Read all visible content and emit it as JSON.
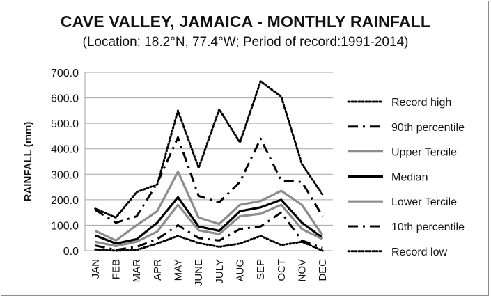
{
  "chart_data": {
    "type": "line",
    "title": "CAVE VALLEY, JAMAICA - MONTHLY RAINFALL",
    "subtitle": "(Location: 18.2°N, 77.4°W; Period of record:1991-2014)",
    "ylabel": "RAINFALL (mm)",
    "xlabel": "",
    "ylim": [
      0,
      700
    ],
    "yticks": [
      "0.0",
      "100.0",
      "200.0",
      "300.0",
      "400.0",
      "500.0",
      "600.0",
      "700.0"
    ],
    "categories": [
      "JAN",
      "FEB",
      "MAR",
      "APR",
      "MAY",
      "JUNE",
      "JULY",
      "AUG",
      "SEP",
      "OCT",
      "NOV",
      "DEC"
    ],
    "grid": true,
    "legend_position": "right",
    "series": [
      {
        "name": "Record high",
        "style": "dotted",
        "color": "#000000",
        "values": [
          165,
          130,
          230,
          260,
          550,
          325,
          555,
          425,
          665,
          605,
          340,
          220
        ]
      },
      {
        "name": "90th percentile",
        "style": "dashdot",
        "color": "#000000",
        "values": [
          160,
          110,
          135,
          265,
          445,
          215,
          190,
          270,
          440,
          275,
          270,
          135
        ]
      },
      {
        "name": "Upper Tercile",
        "style": "solid-gray",
        "color": "#8c8c8c",
        "values": [
          78,
          40,
          100,
          155,
          310,
          130,
          105,
          180,
          195,
          235,
          180,
          60
        ]
      },
      {
        "name": "Median",
        "style": "solid-black",
        "color": "#000000",
        "values": [
          60,
          28,
          45,
          110,
          210,
          95,
          78,
          155,
          170,
          200,
          110,
          50
        ]
      },
      {
        "name": "Lower Tercile",
        "style": "solid-gray",
        "color": "#8c8c8c",
        "values": [
          35,
          18,
          35,
          75,
          180,
          80,
          65,
          135,
          145,
          180,
          85,
          45
        ]
      },
      {
        "name": "10th percentile",
        "style": "dashdot",
        "color": "#000000",
        "values": [
          20,
          3,
          15,
          45,
          100,
          50,
          40,
          85,
          95,
          150,
          40,
          10
        ]
      },
      {
        "name": "Record low",
        "style": "dotted",
        "color": "#000000",
        "values": [
          5,
          0,
          3,
          28,
          58,
          30,
          15,
          28,
          58,
          22,
          35,
          0
        ]
      }
    ]
  }
}
